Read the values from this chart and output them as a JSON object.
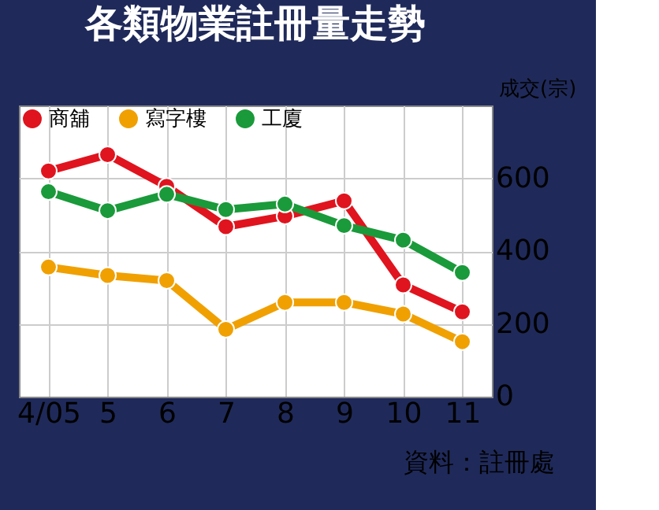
{
  "chart_data": {
    "type": "line",
    "title": "各類物業註冊量走勢",
    "ylabel": "成交(宗)",
    "categories": [
      "4/05",
      "5",
      "6",
      "7",
      "8",
      "9",
      "10",
      "11"
    ],
    "series": [
      {
        "name": "商舖",
        "color": "#e0141e",
        "values": [
          620,
          665,
          578,
          467,
          496,
          538,
          307,
          233
        ]
      },
      {
        "name": "寫字樓",
        "color": "#f0a000",
        "values": [
          356,
          333,
          319,
          185,
          259,
          259,
          227,
          151
        ]
      },
      {
        "name": "工廈",
        "color": "#1a9a3a",
        "values": [
          563,
          511,
          556,
          514,
          529,
          470,
          430,
          341
        ]
      }
    ],
    "ylim": [
      0,
      800
    ],
    "yticks": [
      0,
      200,
      400,
      600
    ],
    "grid": true,
    "legend": "top left",
    "marker": "circle",
    "line_style": "solid",
    "annotations": [
      "資料：註冊處"
    ]
  }
}
